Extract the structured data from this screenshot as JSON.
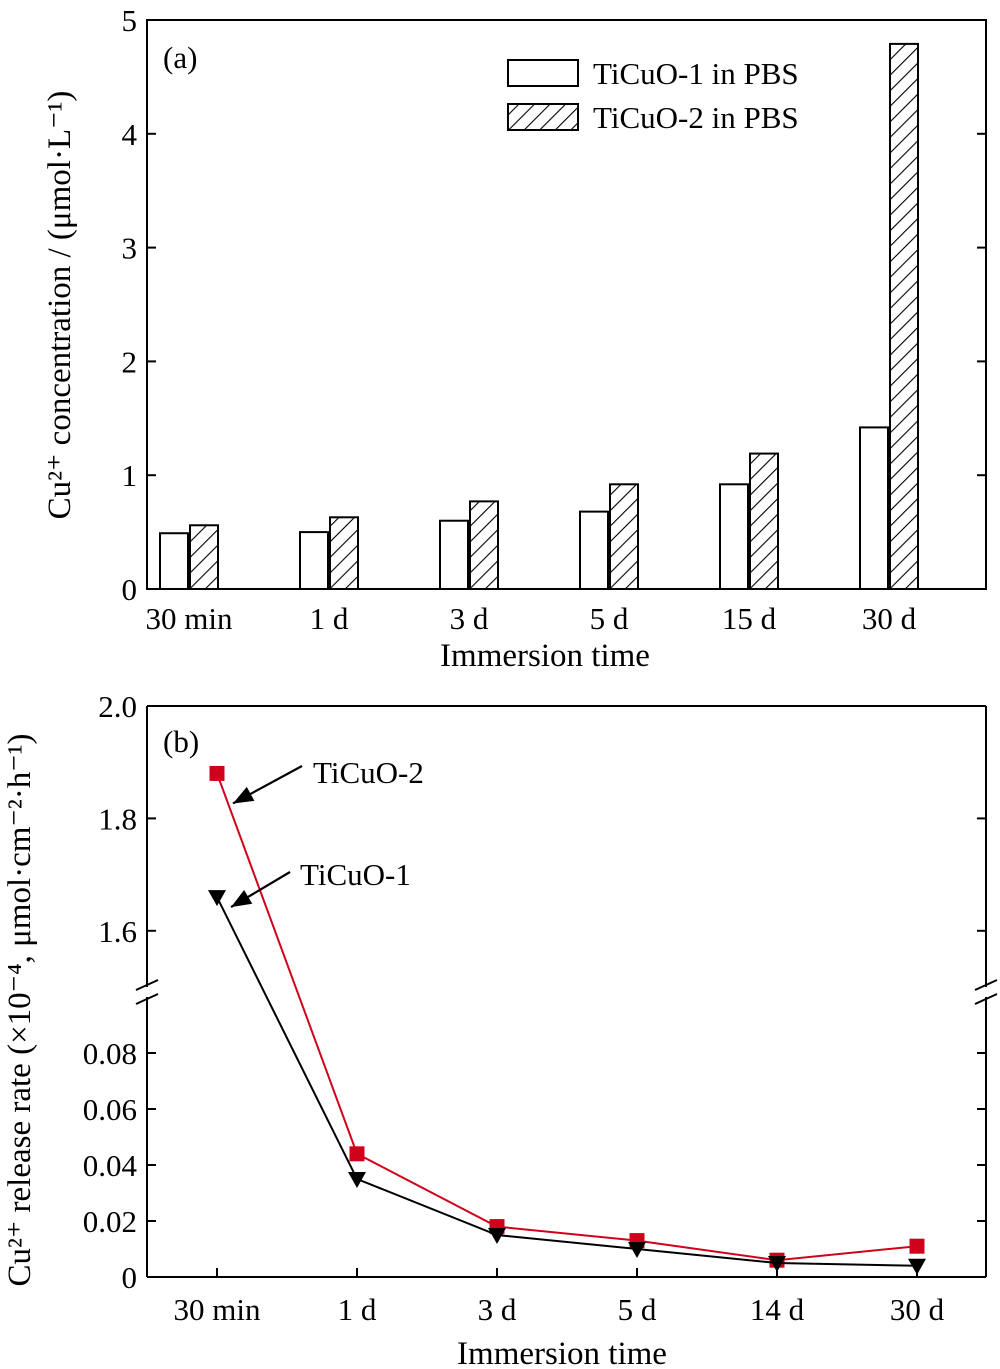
{
  "chart_data": [
    {
      "type": "bar",
      "panel_label": "(a)",
      "categories": [
        "30 min",
        "1 d",
        "3 d",
        "5 d",
        "15 d",
        "30 d"
      ],
      "xlabel": "Immersion time",
      "ylabel": "Cu²⁺ concentration / (μmol·L⁻¹)",
      "ylim": [
        0,
        5
      ],
      "yticks": [
        "0",
        "1",
        "2",
        "3",
        "4",
        "5"
      ],
      "legend_position": "top-right",
      "series": [
        {
          "name": "TiCuO-1 in PBS",
          "fill": "open",
          "values": [
            0.49,
            0.5,
            0.6,
            0.68,
            0.92,
            1.42
          ]
        },
        {
          "name": "TiCuO-2 in PBS",
          "fill": "hatched",
          "values": [
            0.56,
            0.63,
            0.77,
            0.92,
            1.19,
            4.79
          ]
        }
      ]
    },
    {
      "type": "line",
      "panel_label": "(b)",
      "categories": [
        "30 min",
        "1 d",
        "3 d",
        "5 d",
        "14 d",
        "30 d"
      ],
      "xlabel": "Immersion time",
      "ylabel": "Cu²⁺ release rate (×10⁻⁴, μmol·cm⁻²·h⁻¹)",
      "broken_axis": true,
      "lower_ylim": [
        0,
        0.1
      ],
      "upper_ylim": [
        1.5,
        2.0
      ],
      "yticks_lower": [
        "0",
        "0.02",
        "0.04",
        "0.06",
        "0.08"
      ],
      "yticks_upper": [
        "1.6",
        "1.8",
        "2.0"
      ],
      "series": [
        {
          "name": "TiCuO-2",
          "color": "#d0021b",
          "marker": "square",
          "values": [
            1.88,
            0.044,
            0.018,
            0.013,
            0.006,
            0.011
          ]
        },
        {
          "name": "TiCuO-1",
          "color": "#000000",
          "marker": "triangle-down",
          "values": [
            1.66,
            0.035,
            0.015,
            0.01,
            0.005,
            0.004
          ]
        }
      ]
    }
  ]
}
